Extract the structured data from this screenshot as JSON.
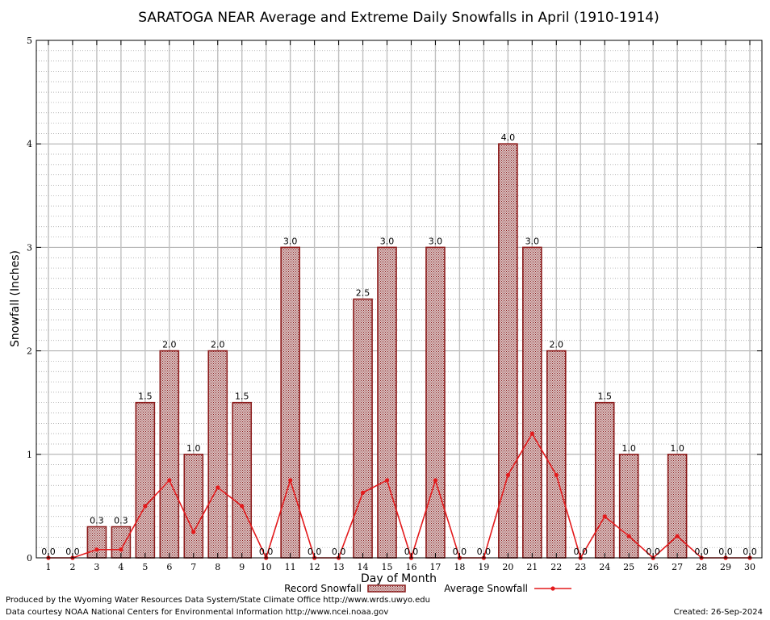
{
  "chart_data": {
    "type": "bar",
    "title": "SARATOGA NEAR Average and Extreme Daily Snowfalls in April (1910-1914)",
    "xlabel": "Day of Month",
    "ylabel": "Snowfall (Inches)",
    "ylim": [
      0,
      5
    ],
    "yticks": [
      "0",
      "1",
      "2",
      "3",
      "4",
      "5"
    ],
    "categories": [
      "1",
      "2",
      "3",
      "4",
      "5",
      "6",
      "7",
      "8",
      "9",
      "10",
      "11",
      "12",
      "13",
      "14",
      "15",
      "16",
      "17",
      "18",
      "19",
      "20",
      "21",
      "22",
      "23",
      "24",
      "25",
      "26",
      "27",
      "28",
      "29",
      "30"
    ],
    "grid": true,
    "legend_position": "bottom",
    "series": [
      {
        "name": "Record Snowfall",
        "kind": "bar",
        "color": "#8b1a1a",
        "values": [
          0.0,
          0.0,
          0.3,
          0.3,
          1.5,
          2.0,
          1.0,
          2.0,
          1.5,
          0.0,
          3.0,
          0.0,
          0.0,
          2.5,
          3.0,
          0.0,
          3.0,
          0.0,
          0.0,
          4.0,
          3.0,
          2.0,
          0.0,
          1.5,
          1.0,
          0.0,
          1.0,
          0.0,
          0.0,
          0.0
        ],
        "labels": [
          "0.0",
          "0.0",
          "0.3",
          "0.3",
          "1.5",
          "2.0",
          "1.0",
          "2.0",
          "1.5",
          "0.0",
          "3.0",
          "0.0",
          "0.0",
          "2.5",
          "3.0",
          "0.0",
          "3.0",
          "0.0",
          "0.0",
          "4.0",
          "3.0",
          "2.0",
          "0.0",
          "1.5",
          "1.0",
          "0.0",
          "1.0",
          "0.0",
          "0.0",
          "0.0"
        ]
      },
      {
        "name": "Average Snowfall",
        "kind": "line",
        "color": "#e31a1c",
        "values": [
          0.0,
          0.0,
          0.08,
          0.08,
          0.5,
          0.75,
          0.25,
          0.68,
          0.5,
          0.0,
          0.75,
          0.0,
          0.0,
          0.63,
          0.75,
          0.0,
          0.75,
          0.0,
          0.0,
          0.8,
          1.2,
          0.8,
          0.0,
          0.4,
          0.21,
          0.0,
          0.21,
          0.0,
          0.0,
          0.0
        ]
      }
    ]
  },
  "footer": {
    "produced_by": "Produced by the Wyoming Water Resources Data System/State Climate Office http://www.wrds.uwyo.edu",
    "courtesy": "Data courtesy NOAA National Centers for Environmental Information http://www.ncei.noaa.gov",
    "created": "Created: 26-Sep-2024"
  }
}
